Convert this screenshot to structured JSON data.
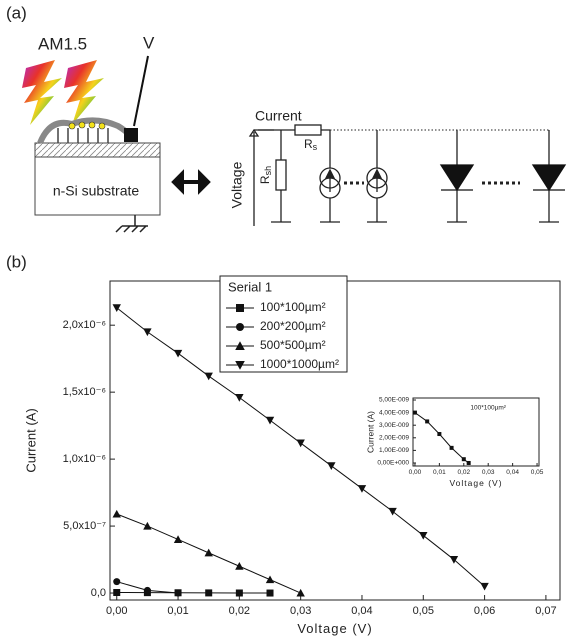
{
  "panel_a": {
    "label": "(a)",
    "light": "AM1.5",
    "probe": "V",
    "substrate": "n-Si substrate",
    "current": "Current",
    "voltage": "Voltage",
    "r_sh": {
      "main": "R",
      "sub": "sh"
    },
    "r_s": {
      "main": "R",
      "sub": "s"
    }
  },
  "panel_b_label": "(b)",
  "chart_data": [
    {
      "type": "line",
      "x_label": "Voltage (V)",
      "y_label": "Current (A)",
      "xlim": [
        -0.0011,
        0.0723
      ],
      "ylim": [
        -5.2e-08,
        2.33e-06
      ],
      "xticks": [
        {
          "value": 0,
          "label": "0,00"
        },
        {
          "value": 0.01,
          "label": "0,01"
        },
        {
          "value": 0.02,
          "label": "0,02"
        },
        {
          "value": 0.03,
          "label": "0,03"
        },
        {
          "value": 0.04,
          "label": "0,04"
        },
        {
          "value": 0.05,
          "label": "0,05"
        },
        {
          "value": 0.06,
          "label": "0,06"
        },
        {
          "value": 0.07,
          "label": "0,07"
        }
      ],
      "yticks": [
        {
          "value": 0,
          "label": "0,0"
        },
        {
          "value": 5e-07,
          "label": "5,0x10⁻⁷"
        },
        {
          "value": 1e-06,
          "label": "1,0x10⁻⁶"
        },
        {
          "value": 1.5e-06,
          "label": "1,5x10⁻⁶"
        },
        {
          "value": 2e-06,
          "label": "2,0x10⁻⁶"
        }
      ],
      "legend_title": "Serial 1",
      "legend": "upper-center",
      "series": [
        {
          "name": "100*100µm²",
          "marker": "square",
          "color": "#111111",
          "x": [
            0,
            0.005,
            0.01,
            0.015,
            0.02,
            0.025
          ],
          "values": [
            4e-09,
            3e-09,
            2e-09,
            1e-09,
            3e-10,
            0
          ]
        },
        {
          "name": "200*200µm²",
          "marker": "circle",
          "color": "#111111",
          "x": [
            0,
            0.005,
            0.01
          ],
          "values": [
            8.5e-08,
            2e-08,
            0
          ]
        },
        {
          "name": "500*500µm²",
          "marker": "triangle-up",
          "color": "#111111",
          "x": [
            0,
            0.005,
            0.01,
            0.015,
            0.02,
            0.025,
            0.03
          ],
          "values": [
            5.9e-07,
            5e-07,
            4e-07,
            3e-07,
            2e-07,
            1e-07,
            0
          ]
        },
        {
          "name": "1000*1000µm²",
          "marker": "triangle-down",
          "color": "#111111",
          "x": [
            0,
            0.005,
            0.01,
            0.015,
            0.02,
            0.025,
            0.03,
            0.035,
            0.04,
            0.045,
            0.05,
            0.055,
            0.06
          ],
          "values": [
            2.13e-06,
            1.95e-06,
            1.79e-06,
            1.62e-06,
            1.46e-06,
            1.29e-06,
            1.12e-06,
            9.5e-07,
            7.8e-07,
            6.1e-07,
            4.3e-07,
            2.5e-07,
            5e-08
          ]
        }
      ]
    },
    {
      "type": "line",
      "x_label": "Voltage (V)",
      "y_label": "Current (A)",
      "annotation": "100*100µm²",
      "xlim": [
        -0.0008,
        0.0508
      ],
      "ylim": [
        -2.4e-10,
        5.16e-09
      ],
      "xticks": [
        {
          "value": 0,
          "label": "0,00"
        },
        {
          "value": 0.01,
          "label": "0,01"
        },
        {
          "value": 0.02,
          "label": "0,02"
        },
        {
          "value": 0.03,
          "label": "0,03"
        },
        {
          "value": 0.04,
          "label": "0,04"
        },
        {
          "value": 0.05,
          "label": "0,05"
        }
      ],
      "yticks": [
        {
          "value": 0,
          "label": "0,00E+000"
        },
        {
          "value": 1e-09,
          "label": "1,00E-009"
        },
        {
          "value": 2e-09,
          "label": "2,00E-009"
        },
        {
          "value": 3e-09,
          "label": "3,00E-009"
        },
        {
          "value": 4e-09,
          "label": "4,00E-009"
        },
        {
          "value": 5e-09,
          "label": "5,00E-009"
        }
      ],
      "series": [
        {
          "marker": "square",
          "color": "#111111",
          "x": [
            0,
            0.005,
            0.01,
            0.015,
            0.02,
            0.022
          ],
          "values": [
            4e-09,
            3.3e-09,
            2.3e-09,
            1.2e-09,
            3e-10,
            0
          ]
        }
      ]
    }
  ]
}
